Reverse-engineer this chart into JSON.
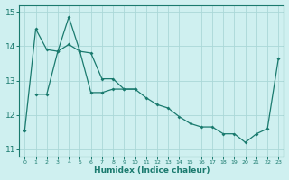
{
  "xlabel": "Humidex (Indice chaleur)",
  "bg_color": "#cff0f0",
  "line_color": "#1a7a6e",
  "grid_color": "#aad8d8",
  "xlim": [
    -0.5,
    23.5
  ],
  "ylim": [
    10.8,
    15.2
  ],
  "yticks": [
    11,
    12,
    13,
    14,
    15
  ],
  "xticks": [
    0,
    1,
    2,
    3,
    4,
    5,
    6,
    7,
    8,
    9,
    10,
    11,
    12,
    13,
    14,
    15,
    16,
    17,
    18,
    19,
    20,
    21,
    22,
    23
  ],
  "series1_x": [
    0,
    1,
    2,
    3,
    4,
    5,
    6,
    7,
    8,
    9,
    10,
    11,
    12,
    13,
    14,
    15,
    16,
    17,
    18,
    19,
    20,
    21,
    22,
    23
  ],
  "series1_y": [
    11.55,
    14.5,
    13.9,
    13.85,
    14.85,
    13.85,
    13.8,
    13.05,
    13.05,
    12.75,
    12.75,
    12.5,
    12.3,
    12.2,
    11.95,
    11.75,
    11.65,
    11.65,
    11.45,
    11.45,
    11.2,
    11.45,
    11.6,
    13.65
  ],
  "series2_x": [
    1,
    2,
    3,
    4,
    5,
    6,
    7,
    8,
    9,
    10
  ],
  "series2_y": [
    12.6,
    12.6,
    13.85,
    14.05,
    13.85,
    12.65,
    12.65,
    12.75,
    12.75,
    12.75
  ]
}
